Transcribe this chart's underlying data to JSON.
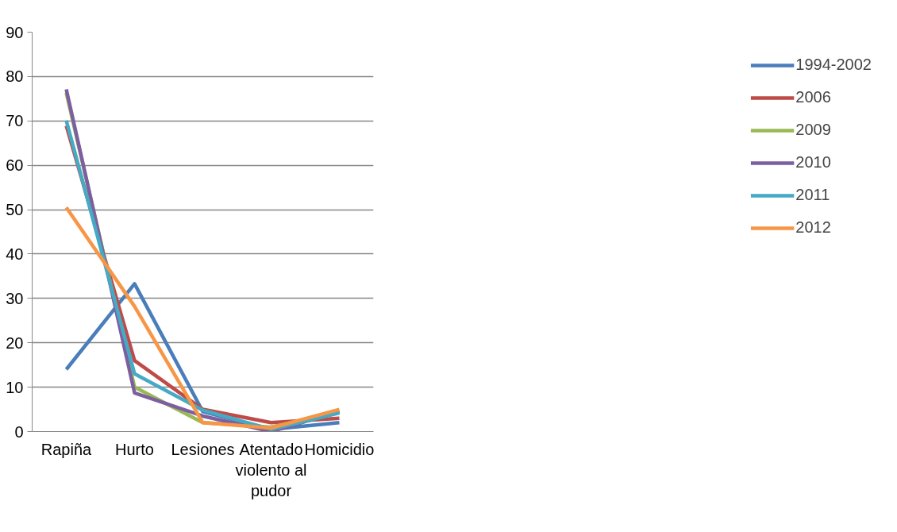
{
  "chart_data": {
    "type": "line",
    "categories": [
      "Rapiña",
      "Hurto",
      "Lesiones",
      "Atentado violento al pudor",
      "Homicidio"
    ],
    "series": [
      {
        "name": "1994-2002",
        "color": "#4a7ebb",
        "values": [
          14,
          33.3,
          4.5,
          0.5,
          2
        ]
      },
      {
        "name": "2006",
        "color": "#be4b48",
        "values": [
          68.9,
          16,
          5,
          2,
          3
        ]
      },
      {
        "name": "2009",
        "color": "#98b954",
        "values": [
          76.3,
          10,
          2,
          1,
          4.5
        ]
      },
      {
        "name": "2010",
        "color": "#7d5fa0",
        "values": [
          77.1,
          8.7,
          3.5,
          0,
          4.5
        ]
      },
      {
        "name": "2011",
        "color": "#46aac5",
        "values": [
          70.1,
          13,
          4.8,
          0.5,
          4.2
        ]
      },
      {
        "name": "2012",
        "color": "#f79646",
        "values": [
          50.5,
          28.2,
          2,
          0.8,
          5
        ]
      }
    ],
    "ylim": [
      0,
      90
    ],
    "yticks": [
      0,
      10,
      20,
      30,
      40,
      50,
      60,
      70,
      80,
      90
    ],
    "grid": "y",
    "legend": "right",
    "marker": "none",
    "line_style": "solid"
  }
}
